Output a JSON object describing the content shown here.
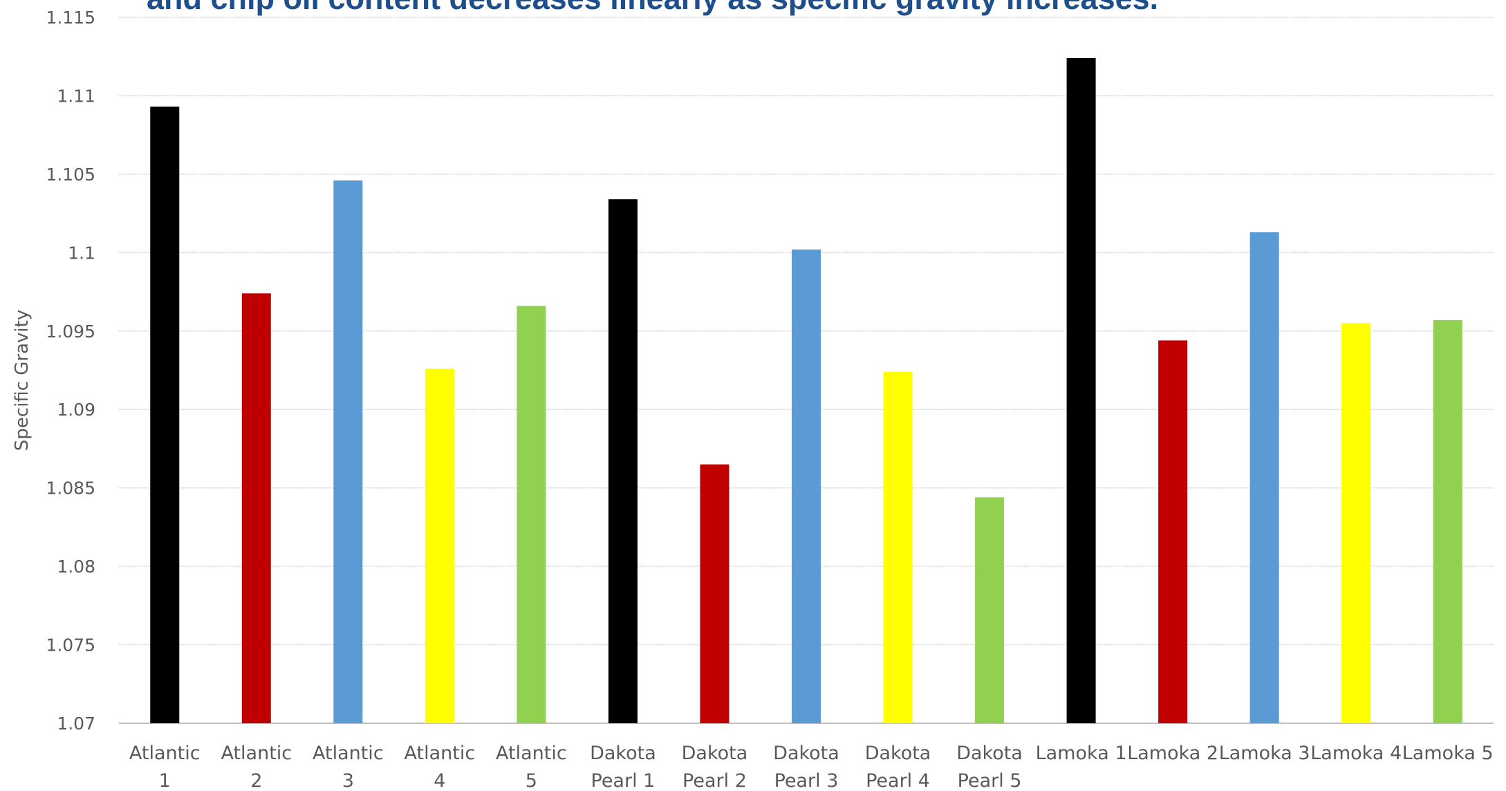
{
  "caption": "and chip oil content decreases linearly as specific gravity increases.",
  "chart_data": {
    "type": "bar",
    "title": "",
    "xlabel": "",
    "ylabel": "Specific Gravity",
    "ylim": [
      1.07,
      1.115
    ],
    "yticks": [
      "1.07",
      "1.075",
      "1.08",
      "1.085",
      "1.09",
      "1.095",
      "1.1",
      "1.105",
      "1.11",
      "1.115"
    ],
    "grid": true,
    "categories": [
      [
        "Atlantic",
        "1"
      ],
      [
        "Atlantic",
        "2"
      ],
      [
        "Atlantic",
        "3"
      ],
      [
        "Atlantic",
        "4"
      ],
      [
        "Atlantic",
        "5"
      ],
      [
        "Dakota",
        "Pearl 1"
      ],
      [
        "Dakota",
        "Pearl 2"
      ],
      [
        "Dakota",
        "Pearl 3"
      ],
      [
        "Dakota",
        "Pearl 4"
      ],
      [
        "Dakota",
        "Pearl 5"
      ],
      [
        "Lamoka 1"
      ],
      [
        "Lamoka 2"
      ],
      [
        "Lamoka 3"
      ],
      [
        "Lamoka 4"
      ],
      [
        "Lamoka 5"
      ]
    ],
    "values": [
      1.1093,
      1.0974,
      1.1046,
      1.0926,
      1.0966,
      1.1034,
      1.0865,
      1.1002,
      1.0924,
      1.0844,
      1.1124,
      1.0944,
      1.1013,
      1.0955,
      1.0957
    ],
    "colors": [
      "#000000",
      "#c00000",
      "#5b9bd5",
      "#ffff00",
      "#92d050",
      "#000000",
      "#c00000",
      "#5b9bd5",
      "#ffff00",
      "#92d050",
      "#000000",
      "#c00000",
      "#5b9bd5",
      "#ffff00",
      "#92d050"
    ]
  }
}
